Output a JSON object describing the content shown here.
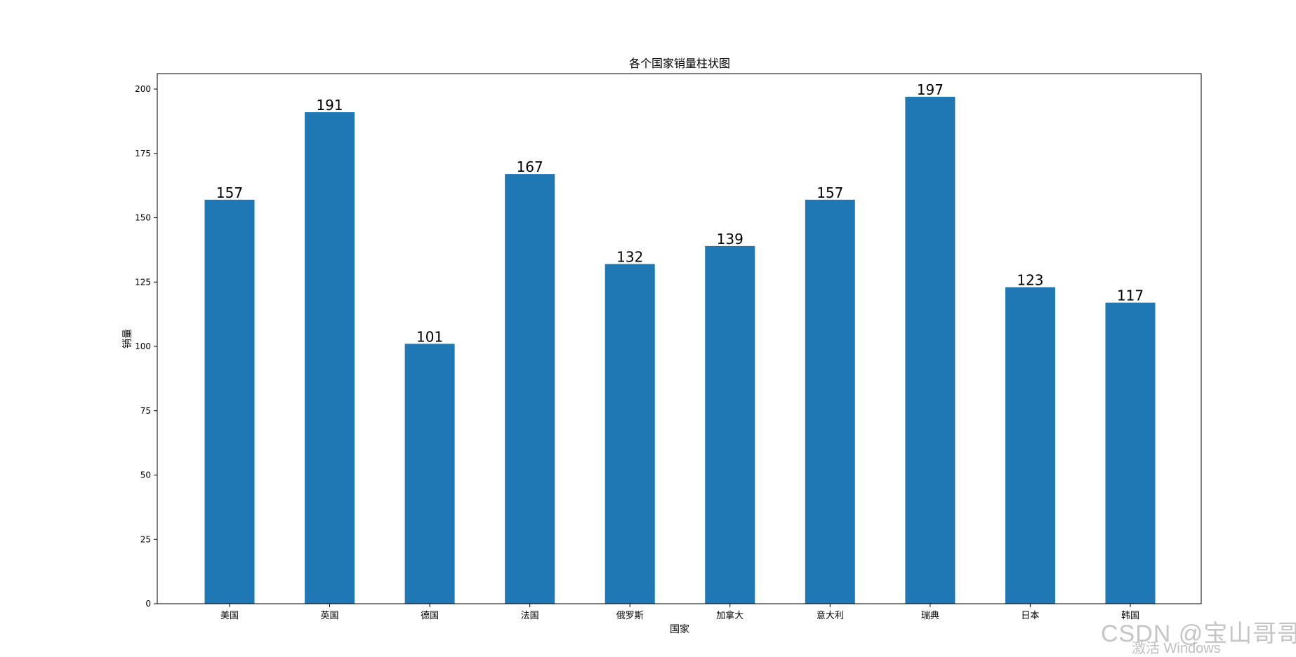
{
  "chart_data": {
    "type": "bar",
    "title": "各个国家销量柱状图",
    "xlabel": "国家",
    "ylabel": "销量",
    "categories": [
      "美国",
      "英国",
      "德国",
      "法国",
      "俄罗斯",
      "加拿大",
      "意大利",
      "瑞典",
      "日本",
      "韩国"
    ],
    "values": [
      157,
      191,
      101,
      167,
      132,
      139,
      157,
      197,
      123,
      117
    ],
    "ylim": [
      0,
      206
    ],
    "yticks": [
      0,
      25,
      50,
      75,
      100,
      125,
      150,
      175,
      200
    ],
    "grid": false,
    "bar_color": "#1f77b4"
  },
  "watermark": {
    "text": "CSDN @宝山哥哥",
    "os_notice": "激活 Windows"
  }
}
